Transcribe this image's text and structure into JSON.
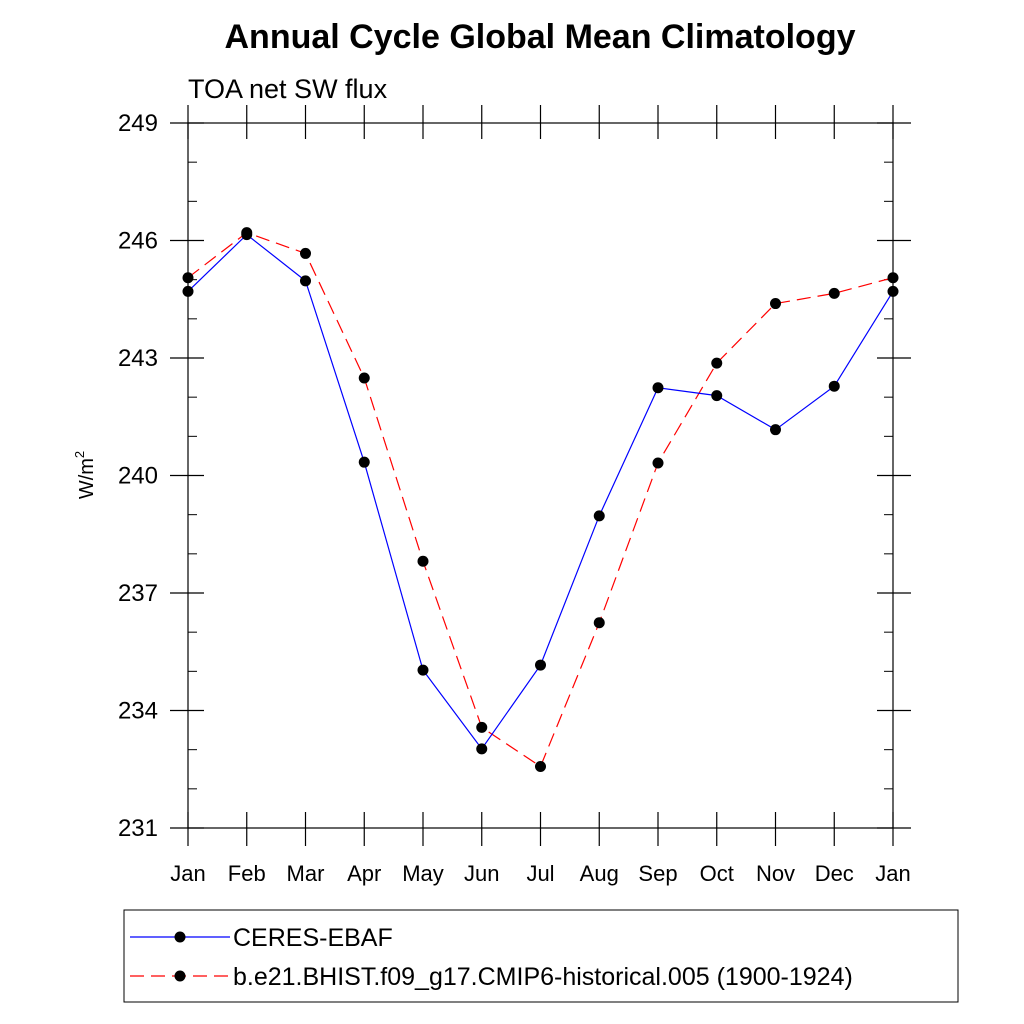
{
  "chart_data": {
    "type": "line",
    "title": "Annual Cycle Global Mean Climatology",
    "subtitle": "TOA net SW flux",
    "ylabel": "W/m",
    "ylabel_sup": "2",
    "categories": [
      "Jan",
      "Feb",
      "Mar",
      "Apr",
      "May",
      "Jun",
      "Jul",
      "Aug",
      "Sep",
      "Oct",
      "Nov",
      "Dec",
      "Jan"
    ],
    "ylim": [
      231,
      249
    ],
    "yticks": [
      231,
      234,
      237,
      240,
      243,
      246,
      249
    ],
    "yticks_minor_step": 1,
    "grid": false,
    "legend_placement": "bottom",
    "series": [
      {
        "name": "CERES-EBAF",
        "color": "#0000ff",
        "dash": "solid",
        "marker": "filled-circle",
        "values": [
          244.7,
          246.15,
          244.97,
          240.34,
          235.03,
          233.02,
          235.16,
          238.97,
          242.24,
          242.04,
          241.17,
          242.28,
          244.7
        ]
      },
      {
        "name": "b.e21.BHIST.f09_g17.CMIP6-historical.005 (1900-1924)",
        "color": "#ff0000",
        "dash": "dashed",
        "marker": "filled-circle",
        "values": [
          245.05,
          246.2,
          245.67,
          242.49,
          237.81,
          233.57,
          232.57,
          236.24,
          240.32,
          242.87,
          244.39,
          244.65,
          245.05
        ]
      }
    ]
  }
}
